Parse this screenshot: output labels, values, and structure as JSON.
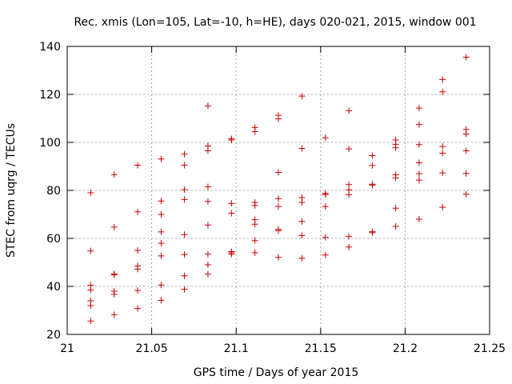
{
  "chart_data": {
    "type": "scatter",
    "title": "Rec. xmis (Lon=105, Lat=-10, h=HE), days 020-021, 2015, window 001",
    "xlabel": "GPS time / Days of year 2015",
    "ylabel": "STEC from uqrg / TECUs",
    "xlim": [
      21,
      21.25
    ],
    "ylim": [
      20,
      140
    ],
    "x_ticks": [
      21,
      21.05,
      21.1,
      21.15,
      21.2,
      21.25
    ],
    "x_tick_labels": [
      "21",
      "21.05",
      "21.1",
      "21.15",
      "21.2",
      "21.25"
    ],
    "y_ticks": [
      20,
      40,
      60,
      80,
      100,
      120,
      140
    ],
    "y_tick_labels": [
      "20",
      "40",
      "60",
      "80",
      "100",
      "120",
      "140"
    ],
    "grid": true,
    "marker": "+",
    "marker_color": "#cc0000",
    "series": [
      {
        "points": [
          [
            21.0139,
            79
          ],
          [
            21.0139,
            54.8
          ],
          [
            21.0139,
            40.5
          ],
          [
            21.0139,
            38.5
          ],
          [
            21.0139,
            34
          ],
          [
            21.0139,
            32
          ],
          [
            21.0139,
            25.6
          ],
          [
            21.0278,
            86.6
          ],
          [
            21.0278,
            64.7
          ],
          [
            21.0278,
            45.2
          ],
          [
            21.0278,
            44.8
          ],
          [
            21.0278,
            38
          ],
          [
            21.0278,
            36.7
          ],
          [
            21.0278,
            28.2
          ],
          [
            21.0417,
            90.5
          ],
          [
            21.0417,
            71.1
          ],
          [
            21.0417,
            55
          ],
          [
            21.0417,
            48.5
          ],
          [
            21.0417,
            47.2
          ],
          [
            21.0417,
            38.3
          ],
          [
            21.0417,
            30.8
          ],
          [
            21.0556,
            93.1
          ],
          [
            21.0556,
            75.6
          ],
          [
            21.0556,
            70
          ],
          [
            21.0556,
            62.7
          ],
          [
            21.0556,
            58
          ],
          [
            21.0556,
            52.7
          ],
          [
            21.0556,
            40.6
          ],
          [
            21.0556,
            34.2
          ],
          [
            21.0694,
            95.1
          ],
          [
            21.0694,
            90.5
          ],
          [
            21.0694,
            80.3
          ],
          [
            21.0694,
            76.2
          ],
          [
            21.0694,
            61.6
          ],
          [
            21.0694,
            53.3
          ],
          [
            21.0694,
            44.4
          ],
          [
            21.0694,
            38.8
          ],
          [
            21.0833,
            115.2
          ],
          [
            21.0833,
            98.5
          ],
          [
            21.0833,
            96.5
          ],
          [
            21.0833,
            81.5
          ],
          [
            21.0833,
            75.4
          ],
          [
            21.0833,
            65.6
          ],
          [
            21.0833,
            53.4
          ],
          [
            21.0833,
            49
          ],
          [
            21.0833,
            45.1
          ],
          [
            21.0972,
            101.5
          ],
          [
            21.0972,
            101
          ],
          [
            21.0972,
            74.6
          ],
          [
            21.0972,
            70.5
          ],
          [
            21.0972,
            54.5
          ],
          [
            21.0972,
            54
          ],
          [
            21.0972,
            53.4
          ],
          [
            21.1111,
            106.2
          ],
          [
            21.1111,
            104.5
          ],
          [
            21.1111,
            75
          ],
          [
            21.1111,
            73.7
          ],
          [
            21.1111,
            67.8
          ],
          [
            21.1111,
            65.9
          ],
          [
            21.1111,
            59.1
          ],
          [
            21.1111,
            54
          ],
          [
            21.125,
            111.3
          ],
          [
            21.125,
            109.8
          ],
          [
            21.125,
            87.5
          ],
          [
            21.125,
            76.6
          ],
          [
            21.125,
            73.3
          ],
          [
            21.125,
            63.8
          ],
          [
            21.125,
            63.2
          ],
          [
            21.125,
            52.1
          ],
          [
            21.1389,
            119.3
          ],
          [
            21.1389,
            97.5
          ],
          [
            21.1389,
            77
          ],
          [
            21.1389,
            75
          ],
          [
            21.1389,
            67.1
          ],
          [
            21.1389,
            61.2
          ],
          [
            21.1389,
            51.7
          ],
          [
            21.1528,
            101.9
          ],
          [
            21.1528,
            78.7
          ],
          [
            21.1528,
            78.3
          ],
          [
            21.1528,
            73.3
          ],
          [
            21.1528,
            60.4
          ],
          [
            21.1528,
            53.1
          ],
          [
            21.1667,
            113.2
          ],
          [
            21.1667,
            97.3
          ],
          [
            21.1667,
            82.4
          ],
          [
            21.1667,
            80.2
          ],
          [
            21.1667,
            78.2
          ],
          [
            21.1667,
            60.8
          ],
          [
            21.1667,
            56.4
          ],
          [
            21.1806,
            94.5
          ],
          [
            21.1806,
            90.4
          ],
          [
            21.1806,
            82.6
          ],
          [
            21.1806,
            82.2
          ],
          [
            21.1806,
            62.8
          ],
          [
            21.1806,
            62.4
          ],
          [
            21.1944,
            101
          ],
          [
            21.1944,
            99.2
          ],
          [
            21.1944,
            97.8
          ],
          [
            21.1944,
            86.5
          ],
          [
            21.1944,
            85.2
          ],
          [
            21.1944,
            72.6
          ],
          [
            21.1944,
            65
          ],
          [
            21.2083,
            114.3
          ],
          [
            21.2083,
            107.4
          ],
          [
            21.2083,
            99.1
          ],
          [
            21.2083,
            91.5
          ],
          [
            21.2083,
            87
          ],
          [
            21.2083,
            84.3
          ],
          [
            21.2083,
            68
          ],
          [
            21.2222,
            126.2
          ],
          [
            21.2222,
            121.1
          ],
          [
            21.2222,
            98.3
          ],
          [
            21.2222,
            95.5
          ],
          [
            21.2222,
            87.3
          ],
          [
            21.2222,
            73
          ],
          [
            21.2361,
            135.5
          ],
          [
            21.2361,
            105.4
          ],
          [
            21.2361,
            103.5
          ],
          [
            21.2361,
            96.5
          ],
          [
            21.2361,
            87.1
          ],
          [
            21.2361,
            78.4
          ]
        ]
      }
    ]
  }
}
